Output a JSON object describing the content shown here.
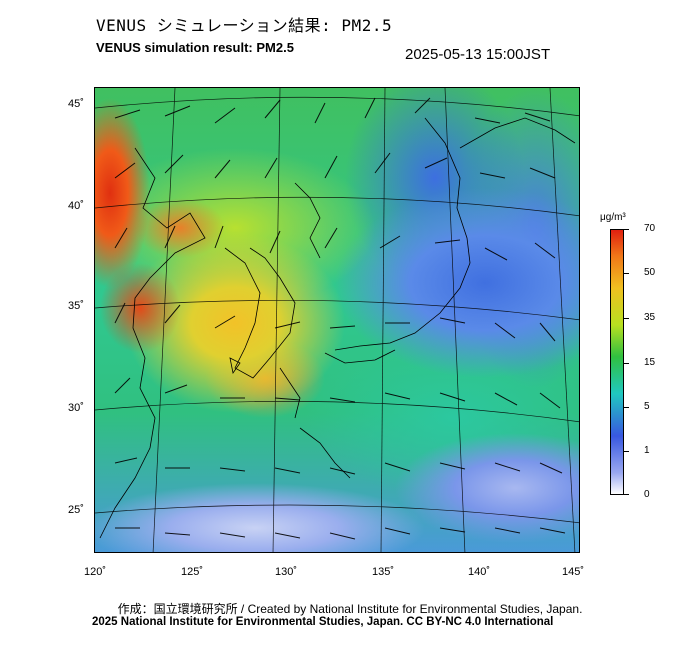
{
  "title_jp": "VENUS シミュレーション結果: PM2.5",
  "title_en": "VENUS simulation result: PM2.5",
  "timestamp": "2025-05-13 15:00JST",
  "map": {
    "lat_labels": [
      "45˚",
      "40˚",
      "35˚",
      "30˚",
      "25˚"
    ],
    "lon_labels": [
      "120˚",
      "125˚",
      "130˚",
      "135˚",
      "140˚",
      "145˚"
    ]
  },
  "colorbar": {
    "unit": "μg/m³",
    "ticks": [
      "70",
      "50",
      "35",
      "15",
      "5",
      "1",
      "0"
    ],
    "colors": [
      "#e02010",
      "#f07818",
      "#f0c020",
      "#b8e020",
      "#30c040",
      "#20c8c0",
      "#3858e0",
      "#9aa8f0",
      "#ffffff"
    ]
  },
  "credit_line1": "作成：国立環境研究所 / Created by National Institute for Environmental Studies, Japan.",
  "credit_line2": "2025 National Institute for Environmental Studies, Japan. CC BY-NC 4.0 International"
}
